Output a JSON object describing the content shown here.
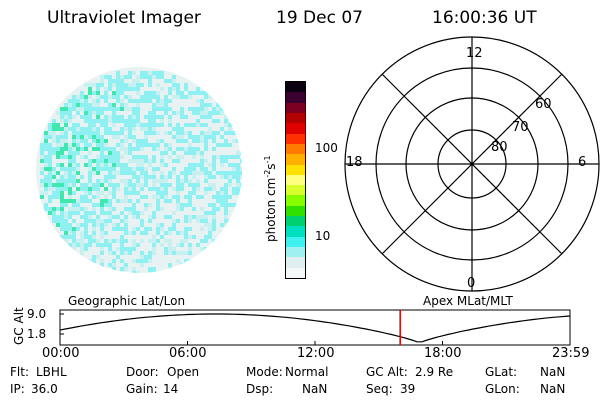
{
  "header": {
    "instrument": "Ultraviolet Imager",
    "date": "19 Dec 07",
    "time": "16:00:36 UT"
  },
  "colorbar": {
    "label": "photon cm",
    "label_sup1": "-2",
    "label_mid": "s",
    "label_sup2": "-1",
    "ticks": [
      "100",
      "10"
    ],
    "colors": [
      "#0a0010",
      "#3a0030",
      "#7a0020",
      "#b20000",
      "#e00000",
      "#ff3000",
      "#ff7a00",
      "#ffb000",
      "#ffe000",
      "#ffff80",
      "#d8ff30",
      "#88ff00",
      "#30e000",
      "#00d070",
      "#00e0c0",
      "#40f0f0",
      "#a0f0f0",
      "#e0f0f0",
      "#f4f8f8"
    ]
  },
  "polar": {
    "labels": {
      "top": "12",
      "bottom": "0",
      "left": "18",
      "right": "6"
    },
    "lat_labels": [
      "60",
      "70",
      "80"
    ]
  },
  "orbit": {
    "left_title": "Geographic Lat/Lon",
    "right_title": "Apex MLat/MLT",
    "ylabel": "GC Alt",
    "ytick_top": "9.0",
    "ytick_bottom": "1.8",
    "xticks": [
      "00:00",
      "06:00",
      "12:00",
      "18:00",
      "23:59"
    ],
    "marker_time_fraction": 0.667
  },
  "status": {
    "flt_label": "Flt:",
    "flt_value": "LBHL",
    "ip_label": "IP:",
    "ip_value": "36.0",
    "door_label": "Door:",
    "door_value": "Open",
    "gain_label": "Gain:",
    "gain_value": "14",
    "mode_label": "Mode:",
    "mode_value": "Normal",
    "dsp_label": "Dsp:",
    "dsp_value": "NaN",
    "gcalt_label": "GC Alt:",
    "gcalt_value": "2.9 Re",
    "seq_label": "Seq:",
    "seq_value": "39",
    "glat_label": "GLat:",
    "glat_value": "NaN",
    "glon_label": "GLon:",
    "glon_value": "NaN"
  },
  "colors": {
    "disk_base": "#e6f0f0",
    "disk_cyan": "#8ef0f0",
    "disk_green": "#40e8b0",
    "marker": "#cc0000"
  }
}
